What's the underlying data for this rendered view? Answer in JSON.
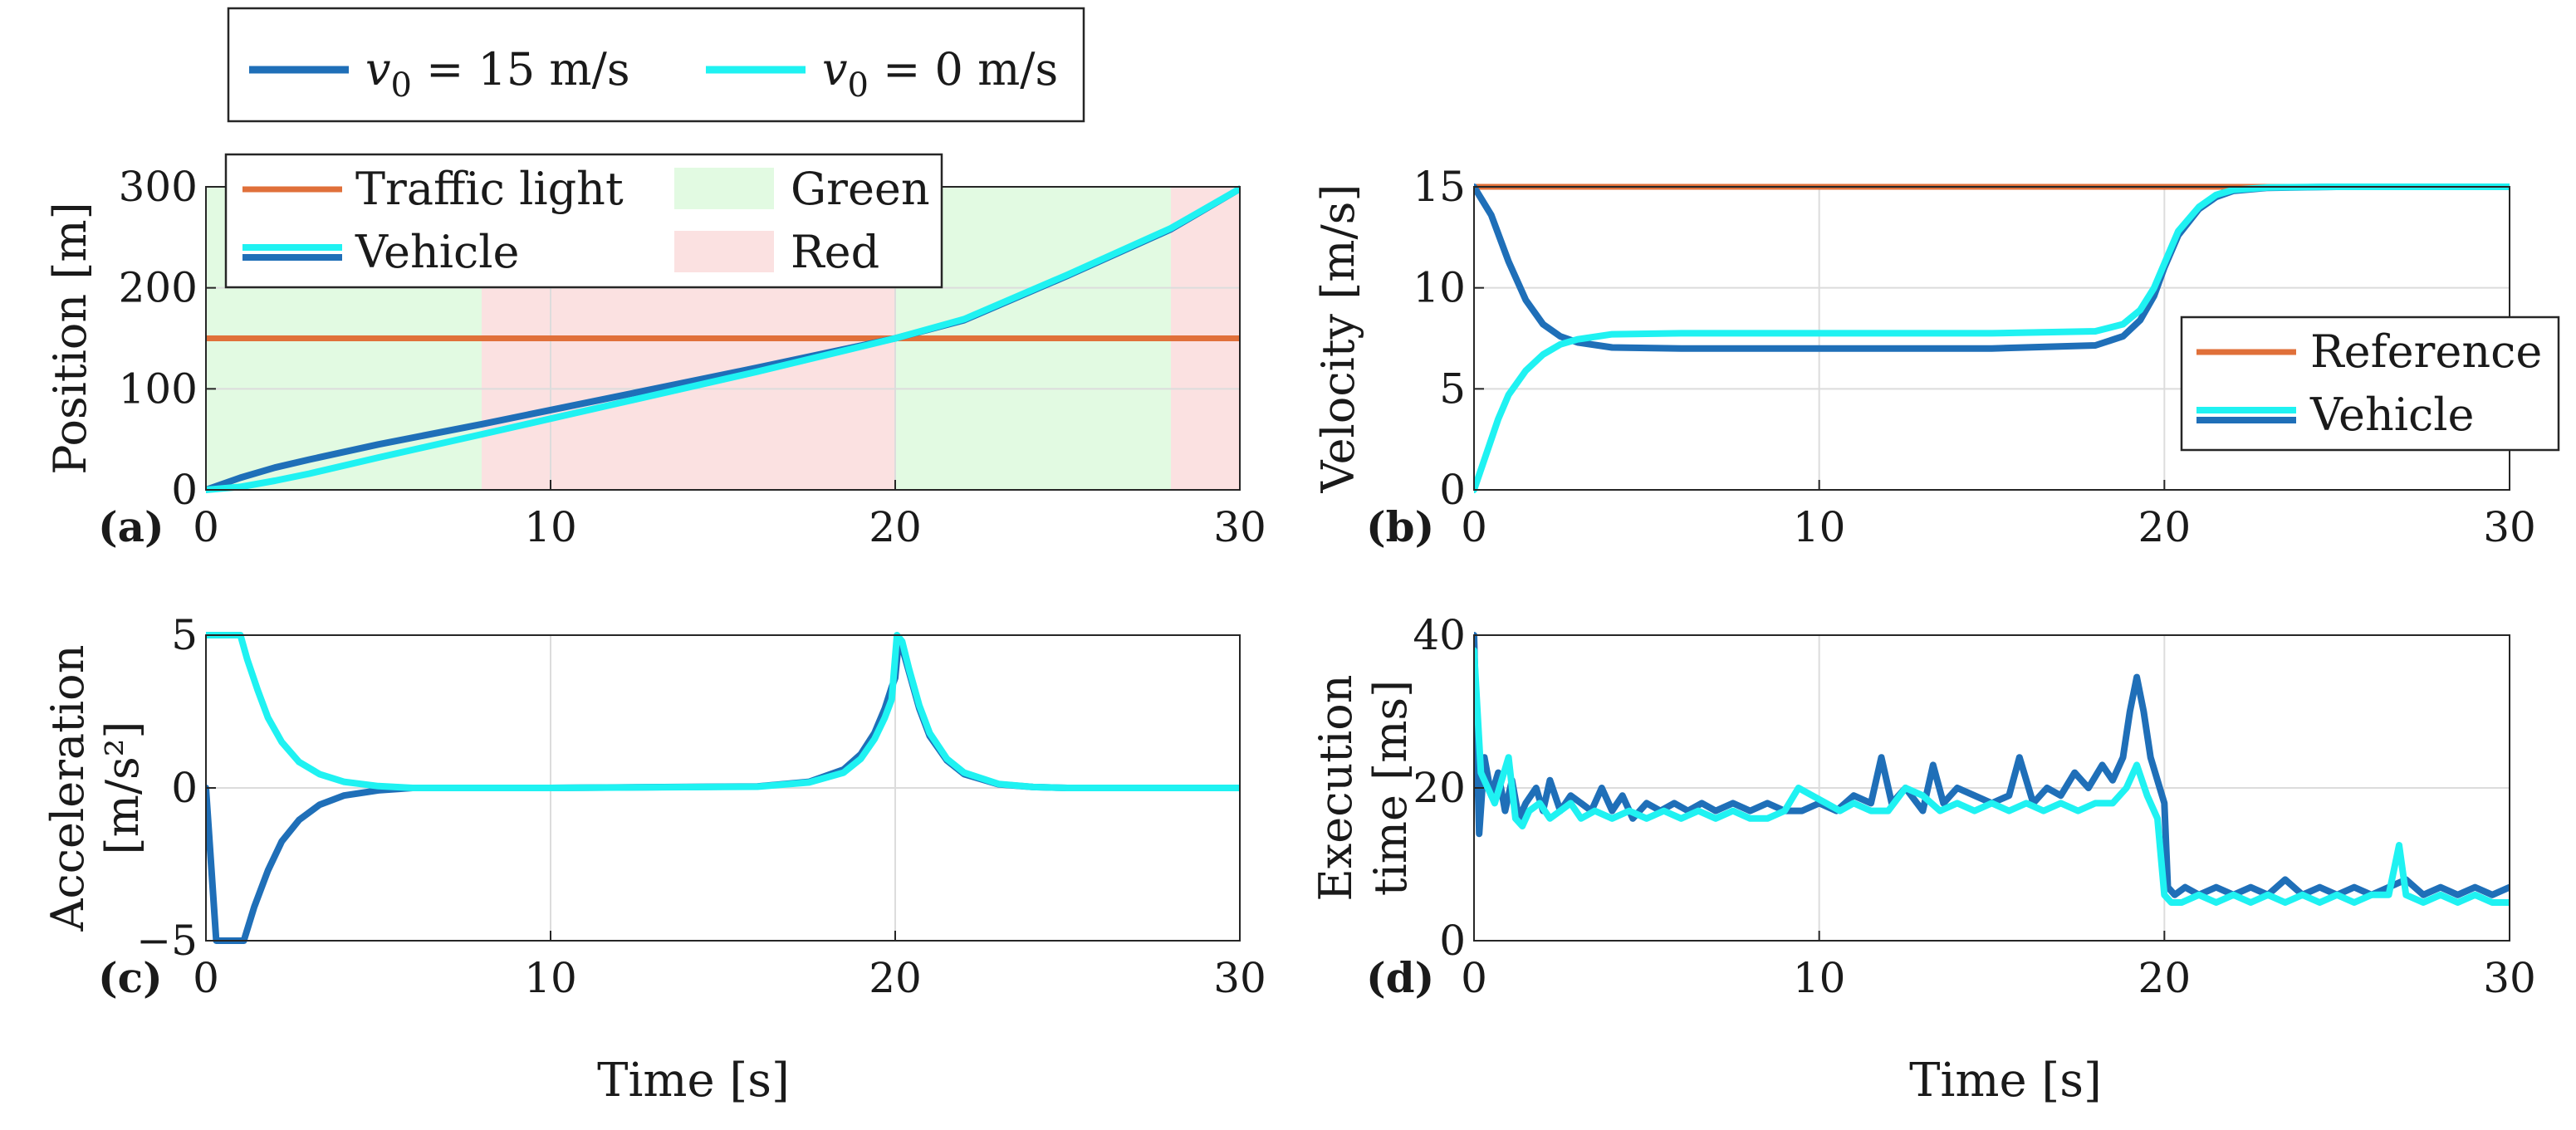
{
  "colors": {
    "v15": "#1f6fb8",
    "v0": "#1ff2f2",
    "orange": "#e0703a",
    "green_zone": "#e2fae2",
    "red_zone": "#fbe1e1"
  },
  "top_legend": {
    "entries": [
      {
        "var": "v",
        "sub": "0",
        "rest": " = 15 m/s"
      },
      {
        "var": "v",
        "sub": "0",
        "rest": " = 0 m/s"
      }
    ]
  },
  "x_label": "Time [s]",
  "chart_data": [
    {
      "panel": "(a)",
      "type": "line",
      "ylabel": "Position [m]",
      "xlim": [
        0,
        30
      ],
      "ylim": [
        0,
        300
      ],
      "xticks": [
        0,
        10,
        20,
        30
      ],
      "yticks": [
        0,
        100,
        200,
        300
      ],
      "zones": [
        {
          "label": "Green",
          "from": 0,
          "to": 8
        },
        {
          "label": "Red",
          "from": 8,
          "to": 20
        },
        {
          "label": "Green",
          "from": 20,
          "to": 28
        },
        {
          "label": "Red",
          "from": 28,
          "to": 30
        }
      ],
      "legend": [
        "Traffic light",
        "Vehicle",
        "Green",
        "Red"
      ],
      "series": [
        {
          "name": "Traffic light",
          "x": [
            0,
            30
          ],
          "y": [
            150,
            150
          ]
        },
        {
          "name": "v0 = 15 m/s",
          "x": [
            0,
            1,
            2,
            3,
            5,
            8,
            12,
            16,
            20,
            22,
            25,
            28,
            30
          ],
          "y": [
            0,
            12,
            22,
            30,
            45,
            65,
            93,
            121,
            150,
            168,
            212,
            258,
            298
          ]
        },
        {
          "name": "v0 = 0 m/s",
          "x": [
            0,
            1,
            2,
            3,
            5,
            8,
            12,
            16,
            20,
            22,
            25,
            28,
            30
          ],
          "y": [
            0,
            3,
            9,
            16,
            32,
            55,
            86,
            117,
            150,
            169,
            213,
            259,
            298
          ]
        }
      ]
    },
    {
      "panel": "(b)",
      "type": "line",
      "ylabel": "Velocity [m/s]",
      "xlim": [
        0,
        30
      ],
      "ylim": [
        0,
        15
      ],
      "xticks": [
        0,
        10,
        20,
        30
      ],
      "yticks": [
        0,
        5,
        10,
        15
      ],
      "legend": [
        "Reference",
        "Vehicle"
      ],
      "series": [
        {
          "name": "Reference",
          "x": [
            0,
            30
          ],
          "y": [
            15,
            15
          ]
        },
        {
          "name": "v0 = 15 m/s",
          "x": [
            0,
            0.5,
            1,
            1.5,
            2,
            2.5,
            3,
            4,
            6,
            10,
            15,
            18,
            18.8,
            19.3,
            19.7,
            20,
            20.4,
            21,
            21.5,
            22,
            23,
            25,
            30
          ],
          "y": [
            15,
            13.6,
            11.3,
            9.4,
            8.2,
            7.6,
            7.3,
            7.05,
            7.0,
            7.0,
            7.0,
            7.15,
            7.6,
            8.4,
            9.6,
            11,
            12.6,
            13.9,
            14.5,
            14.8,
            14.95,
            15,
            15
          ]
        },
        {
          "name": "v0 = 0 m/s",
          "x": [
            0,
            0.3,
            0.7,
            1,
            1.5,
            2,
            2.5,
            3,
            4,
            6,
            10,
            15,
            18,
            18.8,
            19.3,
            19.7,
            20,
            20.4,
            21,
            21.5,
            22,
            23,
            25,
            30
          ],
          "y": [
            0,
            1.5,
            3.5,
            4.7,
            5.9,
            6.7,
            7.2,
            7.45,
            7.7,
            7.75,
            7.75,
            7.75,
            7.85,
            8.2,
            8.9,
            10.0,
            11.2,
            12.8,
            14.0,
            14.6,
            14.85,
            14.97,
            15,
            15
          ]
        }
      ]
    },
    {
      "panel": "(c)",
      "type": "line",
      "ylabel": "Acceleration",
      "ylabel2": "[m/s²]",
      "xlim": [
        0,
        30
      ],
      "ylim": [
        -5,
        5
      ],
      "xticks": [
        0,
        10,
        20,
        30
      ],
      "yticks": [
        -5,
        0,
        5
      ],
      "series": [
        {
          "name": "v0 = 15 m/s",
          "x": [
            0,
            0.15,
            0.3,
            1.1,
            1.4,
            1.8,
            2.2,
            2.7,
            3.3,
            4,
            5,
            6,
            10,
            16,
            17.5,
            18.5,
            19,
            19.4,
            19.7,
            19.9,
            20.0,
            20.1,
            20.2,
            20.4,
            20.7,
            21,
            21.5,
            22,
            23,
            24,
            25,
            30
          ],
          "y": [
            0,
            -2.5,
            -5,
            -5,
            -3.9,
            -2.7,
            -1.75,
            -1.05,
            -0.55,
            -0.25,
            -0.08,
            0,
            0,
            0.05,
            0.2,
            0.6,
            1.1,
            1.8,
            2.6,
            3.3,
            3.6,
            4.8,
            4.6,
            3.8,
            2.6,
            1.7,
            0.9,
            0.45,
            0.12,
            0.03,
            0,
            0
          ]
        },
        {
          "name": "v0 = 0 m/s",
          "x": [
            0,
            0.05,
            1.0,
            1.2,
            1.5,
            1.8,
            2.2,
            2.7,
            3.3,
            4,
            5,
            6,
            10,
            16,
            17.5,
            18.5,
            19,
            19.4,
            19.7,
            19.9,
            20.05,
            20.2,
            20.4,
            20.7,
            21,
            21.5,
            22,
            23,
            24,
            25,
            30
          ],
          "y": [
            5,
            5,
            5,
            4.2,
            3.2,
            2.3,
            1.5,
            0.85,
            0.45,
            0.2,
            0.06,
            0,
            0,
            0.04,
            0.18,
            0.5,
            0.95,
            1.6,
            2.3,
            2.9,
            5.0,
            4.8,
            3.9,
            2.7,
            1.8,
            0.95,
            0.5,
            0.13,
            0.03,
            0,
            0
          ]
        }
      ]
    },
    {
      "panel": "(d)",
      "type": "line",
      "ylabel": "Execution",
      "ylabel2": "time [ms]",
      "xlim": [
        0,
        30
      ],
      "ylim": [
        0,
        40
      ],
      "xticks": [
        0,
        10,
        20,
        30
      ],
      "yticks": [
        0,
        20,
        40
      ],
      "series": [
        {
          "name": "v0 = 15 m/s",
          "x": [
            0,
            0.15,
            0.3,
            0.5,
            0.7,
            0.9,
            1.1,
            1.3,
            1.5,
            1.8,
            2.0,
            2.2,
            2.5,
            2.8,
            3.1,
            3.4,
            3.7,
            4.0,
            4.3,
            4.6,
            5.0,
            5.4,
            5.8,
            6.2,
            6.6,
            7.0,
            7.5,
            8.0,
            8.5,
            9.0,
            9.5,
            10.0,
            10.5,
            11.0,
            11.5,
            11.8,
            12.1,
            12.5,
            13.0,
            13.3,
            13.6,
            14.0,
            14.5,
            15.0,
            15.5,
            15.8,
            16.2,
            16.6,
            17.0,
            17.4,
            17.8,
            18.2,
            18.5,
            18.8,
            19.0,
            19.2,
            19.4,
            19.6,
            19.8,
            20.0,
            20.1,
            20.3,
            20.6,
            21.0,
            21.5,
            22.0,
            22.5,
            23.0,
            23.5,
            24.0,
            24.5,
            25.0,
            25.5,
            26.0,
            26.5,
            27.0,
            27.5,
            28.0,
            28.5,
            29.0,
            29.5,
            30.0
          ],
          "y": [
            40,
            14,
            24,
            19,
            22,
            17,
            21,
            16,
            18,
            20,
            17,
            21,
            17,
            19,
            18,
            17,
            20,
            17,
            19,
            16,
            18,
            17,
            18,
            17,
            18,
            17,
            18,
            17,
            18,
            17,
            17,
            18,
            17,
            19,
            18,
            24,
            18,
            20,
            17,
            23,
            18,
            20,
            19,
            18,
            19,
            24,
            18,
            20,
            19,
            22,
            20,
            23,
            21,
            24,
            30,
            34.5,
            30,
            24,
            21,
            18,
            7,
            6,
            7,
            6,
            7,
            6,
            7,
            6,
            8,
            6,
            7,
            6,
            7,
            6,
            7,
            8,
            6,
            7,
            6,
            7,
            6,
            7
          ]
        },
        {
          "name": "v0 = 0 m/s",
          "x": [
            0,
            0.2,
            0.4,
            0.6,
            0.8,
            1.0,
            1.2,
            1.4,
            1.6,
            1.9,
            2.2,
            2.5,
            2.8,
            3.1,
            3.5,
            4.0,
            4.5,
            5.0,
            5.5,
            6.0,
            6.5,
            7.0,
            7.5,
            8.0,
            8.5,
            9.0,
            9.4,
            9.8,
            10.2,
            10.6,
            11.0,
            11.5,
            12.0,
            12.5,
            13.0,
            13.5,
            14.0,
            14.5,
            15.0,
            15.5,
            16.0,
            16.5,
            17.0,
            17.5,
            18.0,
            18.5,
            18.9,
            19.2,
            19.5,
            19.8,
            20.0,
            20.2,
            20.5,
            21.0,
            21.5,
            22.0,
            22.5,
            23.0,
            23.5,
            24.0,
            24.5,
            25.0,
            25.5,
            26.0,
            26.5,
            26.8,
            27.0,
            27.5,
            28.0,
            28.5,
            29.0,
            29.5,
            30.0
          ],
          "y": [
            38,
            22,
            20,
            18,
            21,
            24,
            16,
            15,
            17,
            18,
            16,
            17,
            18,
            16,
            17,
            16,
            17,
            16,
            17,
            16,
            17,
            16,
            17,
            16,
            16,
            17,
            20,
            19,
            18,
            17,
            18,
            17,
            17,
            20,
            19,
            17,
            18,
            17,
            18,
            17,
            18,
            17,
            18,
            17,
            18,
            18,
            20,
            23,
            19,
            16,
            6,
            5,
            5,
            6,
            5,
            6,
            5,
            6,
            5,
            6,
            5,
            6,
            5,
            6,
            6,
            12.5,
            6,
            5,
            6,
            5,
            6,
            5,
            5
          ]
        }
      ]
    }
  ]
}
